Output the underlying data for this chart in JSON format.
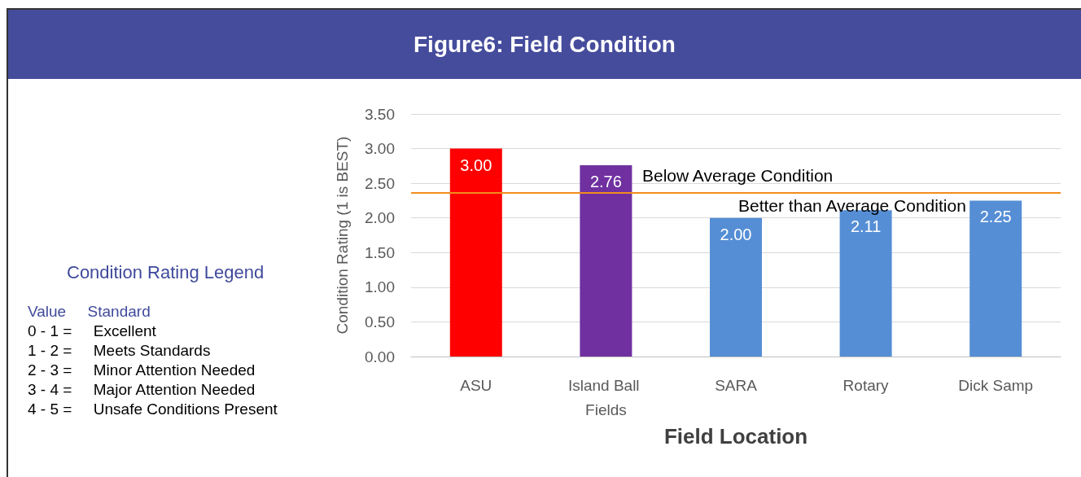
{
  "chart_data": {
    "type": "bar",
    "title": "Figure6: Field Condition",
    "xlabel": "Field Location",
    "ylabel": "Condition Rating (1 is BEST)",
    "categories": [
      "ASU",
      "Island Ball Fields",
      "SARA",
      "Rotary",
      "Dick Samp"
    ],
    "values": [
      3.0,
      2.76,
      2.0,
      2.11,
      2.25
    ],
    "colors": [
      "#ff0000",
      "#7030a0",
      "#558ed5",
      "#558ed5",
      "#558ed5"
    ],
    "value_labels": [
      "3.00",
      "2.76",
      "2.00",
      "2.11",
      "2.25"
    ],
    "ylim": [
      0,
      3.5
    ],
    "yticks": [
      {
        "value": 0,
        "label": "0.00"
      },
      {
        "value": 0.5,
        "label": "0.50"
      },
      {
        "value": 1,
        "label": "1.00"
      },
      {
        "value": 1.5,
        "label": "1.50"
      },
      {
        "value": 2,
        "label": "2.00"
      },
      {
        "value": 2.5,
        "label": "2.50"
      },
      {
        "value": 3,
        "label": "3.00"
      },
      {
        "value": 3.5,
        "label": "3.50"
      }
    ],
    "grid": "y",
    "ref_lines": [
      {
        "axis": "y",
        "value": 2.36,
        "color": "#f28c1e"
      }
    ],
    "annotations": [
      "Below Average Condition",
      "Better than Average Condition",
      "Condition Rating Legend",
      "Value     Standard",
      "0 - 1 =     Excellent",
      "1 - 2 =     Meets Standards",
      "2 - 3 =     Minor Attention Needed",
      "3 - 4 =     Major Attention Needed",
      "4 - 5 =     Unsafe Conditions Present"
    ]
  }
}
